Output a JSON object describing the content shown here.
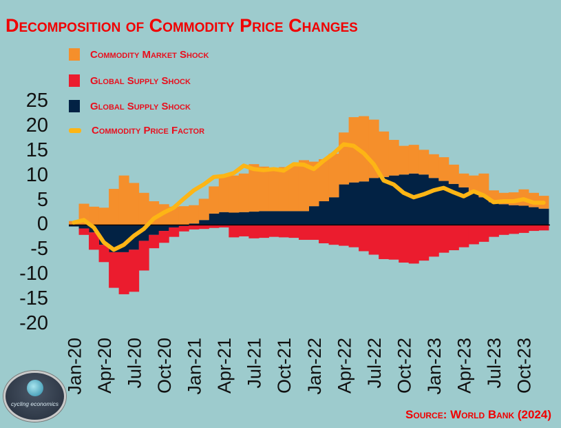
{
  "title": "Decomposition of Commodity Price Changes",
  "source": "Source: World Bank (2024)",
  "logo": {
    "text": "cycling economics",
    "icon": "globe-cyclists-icon"
  },
  "colors": {
    "background": "#9dcbcd",
    "commodity_market_shock": "#f58f2b",
    "global_supply_shock_red": "#eb1c2e",
    "global_supply_shock_navy": "#022244",
    "commodity_price_factor": "#fdb515",
    "title": "#f00000"
  },
  "chart_data": {
    "type": "bar",
    "stacked": true,
    "title": "Decomposition of Commodity Price Changes",
    "xlabel": "",
    "ylabel": "",
    "ylim": [
      -20,
      25
    ],
    "yticks": [
      "25",
      "20",
      "15",
      "10",
      "5",
      "0",
      "-5",
      "-10",
      "-15",
      "-20"
    ],
    "ytick_values": [
      25,
      20,
      15,
      10,
      5,
      0,
      -5,
      -10,
      -15,
      -20
    ],
    "xtick_labels": [
      "Jan-20",
      "Apr-20",
      "Jul-20",
      "Oct-20",
      "Jan-21",
      "Apr-21",
      "Jul-21",
      "Oct-21",
      "Jan-22",
      "Apr-22",
      "Jul-22",
      "Oct-22",
      "Jan-23",
      "Apr-23",
      "Jul-23",
      "Oct-23"
    ],
    "xtick_every": 3,
    "legend_position": "top-left",
    "grid": false,
    "categories": [
      "Jan-20",
      "Feb-20",
      "Mar-20",
      "Apr-20",
      "May-20",
      "Jun-20",
      "Jul-20",
      "Aug-20",
      "Sep-20",
      "Oct-20",
      "Nov-20",
      "Dec-20",
      "Jan-21",
      "Feb-21",
      "Mar-21",
      "Apr-21",
      "May-21",
      "Jun-21",
      "Jul-21",
      "Aug-21",
      "Sep-21",
      "Oct-21",
      "Nov-21",
      "Dec-21",
      "Jan-22",
      "Feb-22",
      "Mar-22",
      "Apr-22",
      "May-22",
      "Jun-22",
      "Jul-22",
      "Aug-22",
      "Sep-22",
      "Oct-22",
      "Nov-22",
      "Dec-22",
      "Jan-23",
      "Feb-23",
      "Mar-23",
      "Apr-23",
      "May-23",
      "Jun-23",
      "Jul-23",
      "Aug-23",
      "Sep-23",
      "Oct-23",
      "Nov-23",
      "Dec-23"
    ],
    "series": [
      {
        "name": "Global Supply Shock (navy)",
        "type": "bar",
        "key": "navy",
        "values": [
          -0.3,
          -0.7,
          -1.5,
          -4.0,
          -5.5,
          -5.5,
          -5.0,
          -3.2,
          -2.0,
          -1.2,
          -0.5,
          -0.2,
          0.3,
          1.0,
          2.3,
          2.6,
          2.5,
          2.6,
          2.7,
          2.8,
          2.8,
          2.8,
          2.8,
          2.8,
          3.8,
          4.8,
          5.6,
          8.2,
          8.6,
          8.8,
          9.5,
          9.7,
          10.0,
          10.2,
          10.4,
          10.2,
          9.5,
          8.9,
          8.3,
          7.6,
          6.5,
          5.6,
          4.6,
          4.2,
          4.0,
          3.9,
          3.6,
          3.3
        ]
      },
      {
        "name": "Commodity Market Shock",
        "type": "bar",
        "key": "orange",
        "values": [
          0.8,
          4.3,
          3.7,
          3.5,
          7.3,
          10.0,
          8.5,
          6.5,
          4.8,
          4.2,
          3.7,
          3.8,
          3.7,
          4.3,
          5.5,
          7.4,
          7.5,
          7.8,
          9.6,
          9.0,
          8.7,
          8.9,
          9.2,
          10.3,
          9.0,
          8.5,
          8.8,
          10.5,
          13.2,
          13.2,
          11.8,
          9.2,
          7.2,
          5.8,
          5.8,
          5.0,
          4.8,
          4.8,
          3.9,
          2.8,
          3.5,
          4.8,
          2.4,
          2.3,
          2.6,
          3.3,
          2.9,
          2.6
        ]
      },
      {
        "name": "Global Supply Shock (red)",
        "type": "bar",
        "key": "red",
        "values": [
          0.0,
          -1.3,
          -3.5,
          -3.5,
          -7.2,
          -8.5,
          -8.5,
          -6.0,
          -2.7,
          -2.4,
          -1.9,
          -1.1,
          -0.9,
          -0.8,
          -0.6,
          -0.5,
          -2.5,
          -2.3,
          -2.7,
          -2.6,
          -2.4,
          -2.5,
          -2.6,
          -3.0,
          -3.0,
          -3.7,
          -4.0,
          -4.2,
          -4.5,
          -5.3,
          -6.0,
          -6.9,
          -7.0,
          -7.6,
          -7.8,
          -7.2,
          -6.4,
          -5.6,
          -5.1,
          -4.5,
          -3.9,
          -3.4,
          -2.4,
          -2.0,
          -1.8,
          -1.6,
          -1.2,
          -1.1
        ]
      },
      {
        "name": "Commodity Price Factor",
        "type": "line",
        "key": "line",
        "values": [
          0.5,
          1.0,
          -0.5,
          -3.5,
          -5.0,
          -4.0,
          -2.2,
          -0.8,
          1.3,
          2.5,
          3.5,
          5.3,
          7.0,
          8.2,
          9.7,
          9.9,
          10.5,
          12.0,
          11.3,
          11.1,
          11.3,
          11.0,
          12.3,
          12.2,
          11.3,
          13.0,
          14.5,
          16.3,
          16.0,
          14.5,
          12.3,
          9.0,
          8.2,
          6.5,
          5.6,
          6.2,
          7.0,
          7.5,
          6.6,
          5.8,
          6.8,
          6.0,
          4.6,
          4.8,
          4.8,
          5.2,
          4.5,
          4.5
        ]
      }
    ]
  },
  "legend": [
    {
      "label": "Commodity Market Shock",
      "key": "orange",
      "kind": "swatch"
    },
    {
      "label": "Global Supply Shock",
      "key": "red",
      "kind": "swatch"
    },
    {
      "label": "Global Supply Shock",
      "key": "navy",
      "kind": "swatch"
    },
    {
      "label": "Commodity Price Factor",
      "key": "line",
      "kind": "line"
    }
  ]
}
